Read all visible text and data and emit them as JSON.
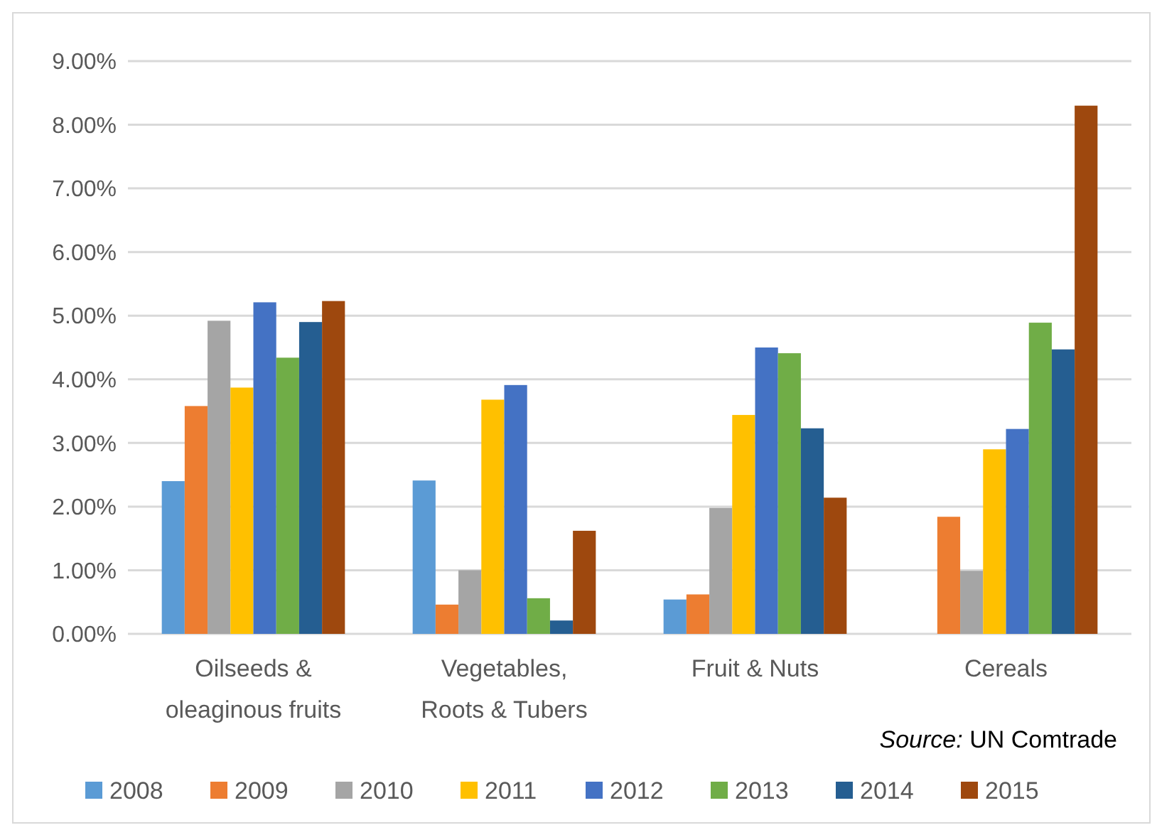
{
  "chart_data": {
    "type": "bar",
    "categories": [
      "Oilseeds & oleaginous fruits",
      "Vegetables, Roots & Tubers",
      "Fruit & Nuts",
      "Cereals"
    ],
    "series": [
      {
        "name": "2008",
        "color": "#5b9bd5",
        "values": [
          2.4,
          2.41,
          0.54,
          0
        ]
      },
      {
        "name": "2009",
        "color": "#ed7d31",
        "values": [
          3.58,
          0.46,
          0.62,
          1.84
        ]
      },
      {
        "name": "2010",
        "color": "#a5a5a5",
        "values": [
          4.92,
          1.0,
          1.98,
          0.99
        ]
      },
      {
        "name": "2011",
        "color": "#ffc000",
        "values": [
          3.87,
          3.68,
          3.44,
          2.9
        ]
      },
      {
        "name": "2012",
        "color": "#4472c4",
        "values": [
          5.21,
          3.91,
          4.5,
          3.22
        ]
      },
      {
        "name": "2013",
        "color": "#70ad47",
        "values": [
          4.34,
          0.56,
          4.41,
          4.89
        ]
      },
      {
        "name": "2014",
        "color": "#255e91",
        "values": [
          4.9,
          0.21,
          3.23,
          4.47
        ]
      },
      {
        "name": "2015",
        "color": "#9e480e",
        "values": [
          5.23,
          1.62,
          2.14,
          8.3
        ]
      }
    ],
    "ylim": [
      0,
      9
    ],
    "yticks": [
      {
        "value": 0,
        "label": "0.00%"
      },
      {
        "value": 1,
        "label": "1.00%"
      },
      {
        "value": 2,
        "label": "2.00%"
      },
      {
        "value": 3,
        "label": "3.00%"
      },
      {
        "value": 4,
        "label": "4.00%"
      },
      {
        "value": 5,
        "label": "5.00%"
      },
      {
        "value": 6,
        "label": "6.00%"
      },
      {
        "value": 7,
        "label": "7.00%"
      },
      {
        "value": 8,
        "label": "8.00%"
      },
      {
        "value": 9,
        "label": "9.00%"
      }
    ],
    "grid": "y",
    "legend": "bottom",
    "annotations": [
      "Source: UN Comtrade"
    ]
  }
}
